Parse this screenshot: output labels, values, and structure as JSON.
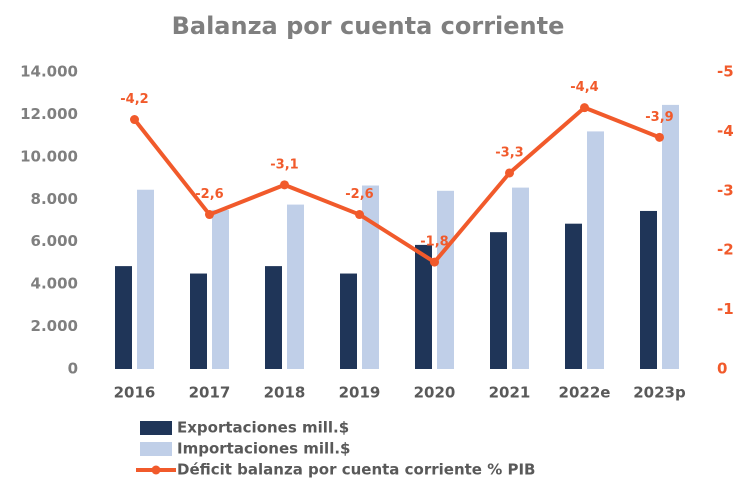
{
  "chart_data": {
    "type": "bar",
    "title": "Balanza por cuenta corriente",
    "categories": [
      "2016",
      "2017",
      "2018",
      "2019",
      "2020",
      "2021",
      "2022e",
      "2023p"
    ],
    "series": [
      {
        "name": "Exportaciones mill.$",
        "type": "bar",
        "color": "#1f3558",
        "values": [
          4850,
          4500,
          4850,
          4500,
          5850,
          6450,
          6850,
          7450
        ]
      },
      {
        "name": "Importaciones mill.$",
        "type": "bar",
        "color": "#c0cfe8",
        "values": [
          8450,
          7500,
          7750,
          8650,
          8400,
          8550,
          11200,
          12450
        ]
      },
      {
        "name": "Déficit balanza por cuenta corriente % PIB",
        "type": "line",
        "axis": "y2",
        "color": "#f15a2b",
        "values": [
          -4.2,
          -2.6,
          -3.1,
          -2.6,
          -1.8,
          -3.3,
          -4.4,
          -3.9
        ],
        "value_labels": [
          "-4,2",
          "-2,6",
          "-3,1",
          "-2,6",
          "-1,8",
          "-3,3",
          "-4,4",
          "-3,9"
        ]
      }
    ],
    "ylim": [
      0,
      14000
    ],
    "yticks": [
      0,
      {
        "value": 2000,
        "label": "2.000"
      },
      {
        "value": 4000,
        "label": "4.000"
      },
      {
        "value": 6000,
        "label": "6.000"
      },
      {
        "value": 8000,
        "label": "8.000"
      },
      {
        "value": 10000,
        "label": "10.000"
      },
      {
        "value": 12000,
        "label": "12.000"
      },
      {
        "value": 14000,
        "label": "14.000"
      }
    ],
    "y2lim": [
      0,
      -5
    ],
    "y2ticks": [
      0,
      -1,
      -2,
      -3,
      -4,
      -5
    ],
    "y2color": "#f15a2b",
    "grid": false,
    "legend": "bottom"
  }
}
